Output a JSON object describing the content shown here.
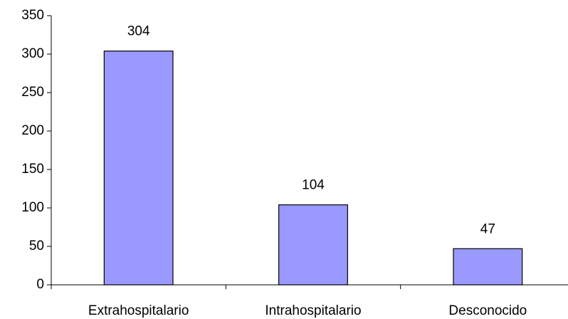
{
  "chart_data": {
    "type": "bar",
    "categories": [
      "Extrahospitalario",
      "Intrahospitalario",
      "Desconocido"
    ],
    "values": [
      304,
      104,
      47
    ],
    "color": "#9999ff",
    "ylim": [
      0,
      350
    ],
    "yticks": [
      0,
      50,
      100,
      150,
      200,
      250,
      300,
      350
    ],
    "grid": false
  }
}
